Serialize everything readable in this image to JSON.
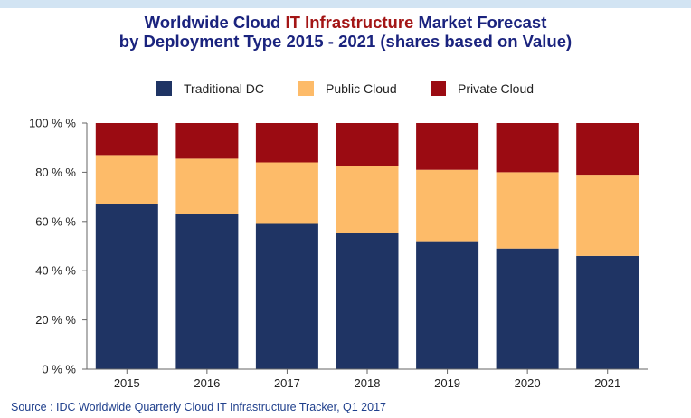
{
  "header": {
    "title_line1_a": "Worldwide Cloud ",
    "title_line1_hl": "IT Infrastructure",
    "title_line1_b": " Market Forecast",
    "title_line2": "by Deployment Type  2015 - 2021 (shares based on Value)"
  },
  "chart_data": {
    "type": "bar",
    "stacked": true,
    "title": "Worldwide Cloud IT Infrastructure Market Forecast by Deployment Type  2015 - 2021 (shares based on Value)",
    "categories": [
      "2015",
      "2016",
      "2017",
      "2018",
      "2019",
      "2020",
      "2021"
    ],
    "series": [
      {
        "name": "Traditional DC",
        "color": "#1f3464",
        "values": [
          67,
          63,
          59,
          55.5,
          52,
          49,
          46
        ]
      },
      {
        "name": "Public Cloud",
        "color": "#fdbb69",
        "values": [
          20,
          22.5,
          25,
          27,
          29,
          31,
          33
        ]
      },
      {
        "name": "Private Cloud",
        "color": "#9b0b12",
        "values": [
          13,
          14.5,
          16,
          17.5,
          19,
          20,
          21
        ]
      }
    ],
    "ylim": [
      0,
      100
    ],
    "yticks": [
      "0 % %",
      "20 % %",
      "40 % %",
      "60 % %",
      "80 % %",
      "100 % %"
    ],
    "xlabel": "",
    "ylabel": "",
    "legend": "top",
    "grid": false
  },
  "source": "Source : IDC Worldwide Quarterly Cloud IT Infrastructure Tracker, Q1 2017"
}
